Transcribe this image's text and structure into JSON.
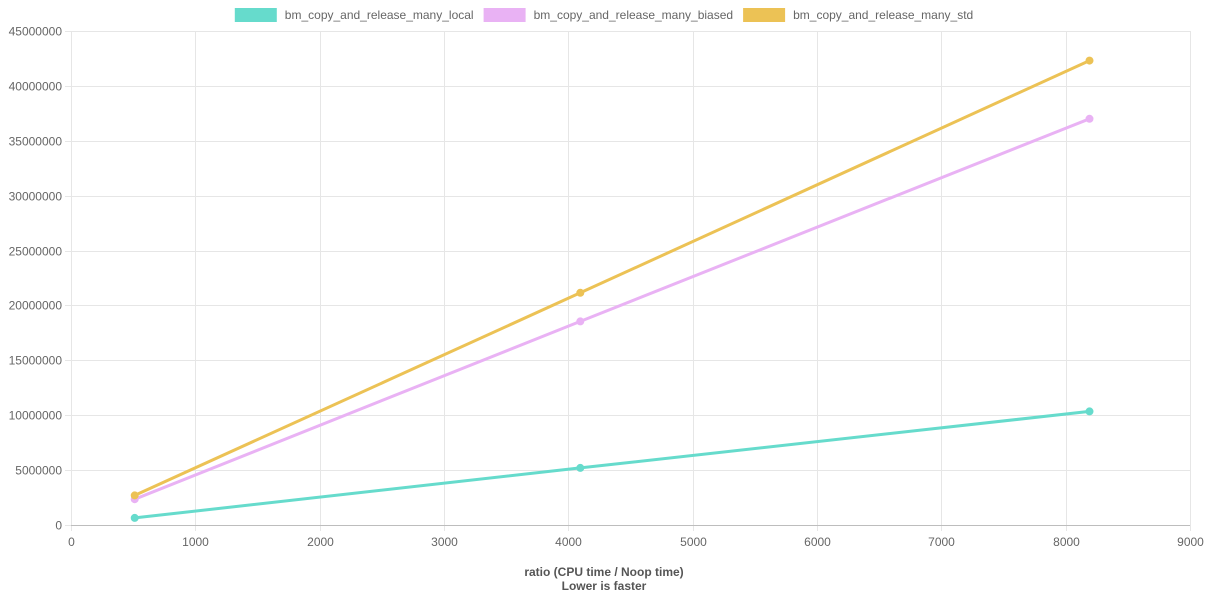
{
  "chart_data": {
    "type": "line",
    "title": "",
    "xlabel": "ratio (CPU time / Noop time)",
    "xlabel_sub": "Lower is faster",
    "ylabel": "",
    "xlim": [
      0,
      9000
    ],
    "ylim": [
      0,
      45000000
    ],
    "xticks": [
      0,
      1000,
      2000,
      3000,
      4000,
      5000,
      6000,
      7000,
      8000,
      9000
    ],
    "yticks": [
      0,
      5000000,
      10000000,
      15000000,
      20000000,
      25000000,
      30000000,
      35000000,
      40000000,
      45000000
    ],
    "grid": true,
    "legend_position": "top",
    "series": [
      {
        "name": "bm_copy_and_release_many_local",
        "color": "#66dbcc",
        "x": [
          512,
          4096,
          8192
        ],
        "y": [
          650000,
          5200000,
          10350000
        ]
      },
      {
        "name": "bm_copy_and_release_many_biased",
        "color": "#e9b2f4",
        "x": [
          512,
          4096,
          8192
        ],
        "y": [
          2350000,
          18550000,
          37000000
        ]
      },
      {
        "name": "bm_copy_and_release_many_std",
        "color": "#ecc255",
        "x": [
          512,
          4096,
          8192
        ],
        "y": [
          2700000,
          21150000,
          42300000
        ]
      }
    ]
  }
}
